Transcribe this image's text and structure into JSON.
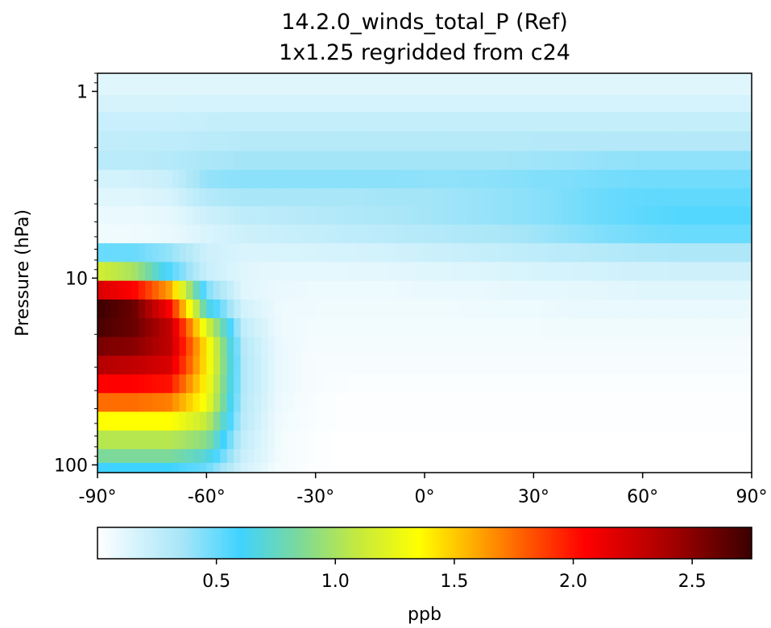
{
  "chart_data": {
    "type": "heatmap",
    "title": "14.2.0_winds_total_P (Ref)",
    "subtitle": "1x1.25 regridded from c24",
    "xlabel": "",
    "ylabel": "Pressure (hPa)",
    "xlim": [
      -90,
      90
    ],
    "ylim": [
      110,
      0.8
    ],
    "yscale": "log",
    "x_ticks": [
      -90,
      -60,
      -30,
      0,
      30,
      60,
      90
    ],
    "x_tick_labels": [
      "-90°",
      "-60°",
      "-30°",
      "0°",
      "30°",
      "60°",
      "90°"
    ],
    "y_ticks": [
      1,
      10,
      100
    ],
    "y_tick_labels": [
      "1",
      "10",
      "100"
    ],
    "grid": false,
    "colorbar": {
      "label": "ppb",
      "orientation": "horizontal",
      "placement": "bottom",
      "vmin": 0,
      "vmax": 2.75,
      "ticks": [
        0.5,
        1.0,
        1.5,
        2.0,
        2.5
      ],
      "tick_labels": [
        "0.5",
        "1.0",
        "1.5",
        "2.0",
        "2.5"
      ],
      "colormap": [
        {
          "v": 0.0,
          "color": "#ffffff"
        },
        {
          "v": 0.12,
          "color": "#e0f6fd"
        },
        {
          "v": 0.35,
          "color": "#a9e6f8"
        },
        {
          "v": 0.6,
          "color": "#3fd3ff"
        },
        {
          "v": 0.85,
          "color": "#7cd99a"
        },
        {
          "v": 1.1,
          "color": "#c6ea3c"
        },
        {
          "v": 1.35,
          "color": "#ffff00"
        },
        {
          "v": 1.55,
          "color": "#ffb800"
        },
        {
          "v": 1.8,
          "color": "#ff5a00"
        },
        {
          "v": 2.05,
          "color": "#ff0000"
        },
        {
          "v": 2.4,
          "color": "#a80000"
        },
        {
          "v": 2.75,
          "color": "#3b0000"
        }
      ]
    },
    "pressure_levels": [
      0.95,
      1.15,
      1.45,
      1.85,
      2.35,
      2.95,
      3.7,
      4.6,
      5.8,
      7.3,
      9.2,
      11.6,
      14.6,
      18.4,
      23.2,
      29.2,
      36.8,
      46.3,
      58.3,
      73.4,
      92.4,
      103
    ],
    "rows": [
      {
        "p": 0.95,
        "v": [
          0.12,
          0.12,
          0.12,
          0.12,
          0.12,
          0.12,
          0.12,
          0.12,
          0.12,
          0.12,
          0.12,
          0.12,
          0.12,
          0.12,
          0.12,
          0.12,
          0.12,
          0.12,
          0.12
        ]
      },
      {
        "p": 1.15,
        "v": [
          0.16,
          0.16,
          0.16,
          0.17,
          0.17,
          0.17,
          0.17,
          0.17,
          0.17,
          0.17,
          0.17,
          0.17,
          0.17,
          0.17,
          0.17,
          0.17,
          0.17,
          0.17,
          0.17
        ]
      },
      {
        "p": 1.45,
        "v": [
          0.22,
          0.22,
          0.22,
          0.23,
          0.24,
          0.24,
          0.24,
          0.24,
          0.24,
          0.24,
          0.24,
          0.24,
          0.24,
          0.24,
          0.24,
          0.24,
          0.24,
          0.24,
          0.24
        ]
      },
      {
        "p": 1.85,
        "v": [
          0.25,
          0.25,
          0.26,
          0.28,
          0.29,
          0.29,
          0.29,
          0.29,
          0.29,
          0.29,
          0.29,
          0.29,
          0.3,
          0.3,
          0.3,
          0.3,
          0.3,
          0.3,
          0.3
        ]
      },
      {
        "p": 2.35,
        "v": [
          0.28,
          0.28,
          0.3,
          0.34,
          0.36,
          0.36,
          0.36,
          0.36,
          0.36,
          0.36,
          0.36,
          0.36,
          0.37,
          0.38,
          0.4,
          0.41,
          0.41,
          0.41,
          0.41
        ]
      },
      {
        "p": 2.95,
        "v": [
          0.18,
          0.18,
          0.22,
          0.4,
          0.42,
          0.42,
          0.42,
          0.42,
          0.42,
          0.41,
          0.41,
          0.42,
          0.44,
          0.45,
          0.47,
          0.48,
          0.48,
          0.48,
          0.48
        ]
      },
      {
        "p": 3.7,
        "v": [
          0.12,
          0.12,
          0.16,
          0.3,
          0.35,
          0.35,
          0.35,
          0.35,
          0.36,
          0.36,
          0.38,
          0.4,
          0.42,
          0.46,
          0.5,
          0.52,
          0.52,
          0.52,
          0.52
        ]
      },
      {
        "p": 4.6,
        "v": [
          0.08,
          0.08,
          0.1,
          0.2,
          0.26,
          0.28,
          0.3,
          0.32,
          0.34,
          0.36,
          0.38,
          0.4,
          0.42,
          0.46,
          0.5,
          0.53,
          0.55,
          0.55,
          0.55
        ]
      },
      {
        "p": 5.8,
        "v": [
          0.06,
          0.06,
          0.08,
          0.15,
          0.2,
          0.22,
          0.24,
          0.26,
          0.28,
          0.3,
          0.32,
          0.34,
          0.37,
          0.41,
          0.45,
          0.48,
          0.5,
          0.5,
          0.5
        ]
      },
      {
        "p": 7.3,
        "v": [
          0.5,
          0.5,
          0.4,
          0.2,
          0.15,
          0.15,
          0.16,
          0.17,
          0.18,
          0.2,
          0.22,
          0.24,
          0.26,
          0.28,
          0.3,
          0.32,
          0.33,
          0.33,
          0.33
        ]
      },
      {
        "p": 9.2,
        "v": [
          1.15,
          1.0,
          0.55,
          0.22,
          0.12,
          0.1,
          0.1,
          0.1,
          0.11,
          0.12,
          0.13,
          0.14,
          0.16,
          0.17,
          0.18,
          0.19,
          0.2,
          0.2,
          0.2
        ]
      },
      {
        "p": 11.6,
        "v": [
          2.2,
          2.05,
          1.6,
          0.45,
          0.12,
          0.08,
          0.07,
          0.07,
          0.07,
          0.08,
          0.08,
          0.09,
          0.1,
          0.1,
          0.11,
          0.12,
          0.12,
          0.12,
          0.12
        ]
      },
      {
        "p": 14.6,
        "v": [
          2.75,
          2.6,
          2.05,
          0.7,
          0.18,
          0.07,
          0.06,
          0.06,
          0.06,
          0.06,
          0.06,
          0.07,
          0.07,
          0.08,
          0.08,
          0.08,
          0.08,
          0.08,
          0.08
        ]
      },
      {
        "p": 18.4,
        "v": [
          2.7,
          2.6,
          2.3,
          1.2,
          0.25,
          0.07,
          0.05,
          0.05,
          0.05,
          0.05,
          0.05,
          0.05,
          0.05,
          0.06,
          0.06,
          0.06,
          0.06,
          0.06,
          0.06
        ]
      },
      {
        "p": 23.2,
        "v": [
          2.55,
          2.5,
          2.3,
          1.4,
          0.3,
          0.08,
          0.04,
          0.04,
          0.04,
          0.04,
          0.04,
          0.04,
          0.04,
          0.04,
          0.04,
          0.04,
          0.04,
          0.04,
          0.04
        ]
      },
      {
        "p": 29.2,
        "v": [
          2.35,
          2.3,
          2.2,
          1.4,
          0.32,
          0.08,
          0.03,
          0.03,
          0.03,
          0.03,
          0.03,
          0.03,
          0.03,
          0.03,
          0.03,
          0.03,
          0.03,
          0.03,
          0.03
        ]
      },
      {
        "p": 36.8,
        "v": [
          2.05,
          2.05,
          2.0,
          1.35,
          0.32,
          0.08,
          0.03,
          0.02,
          0.02,
          0.02,
          0.02,
          0.02,
          0.02,
          0.02,
          0.02,
          0.02,
          0.02,
          0.02,
          0.02
        ]
      },
      {
        "p": 46.3,
        "v": [
          1.75,
          1.75,
          1.7,
          1.3,
          0.3,
          0.07,
          0.02,
          0.01,
          0.01,
          0.01,
          0.01,
          0.01,
          0.01,
          0.01,
          0.01,
          0.01,
          0.01,
          0.01,
          0.01
        ]
      },
      {
        "p": 58.3,
        "v": [
          1.35,
          1.35,
          1.35,
          1.1,
          0.28,
          0.06,
          0.02,
          0.01,
          0.01,
          0.01,
          0.01,
          0.01,
          0.01,
          0.01,
          0.01,
          0.01,
          0.01,
          0.01,
          0.01
        ]
      },
      {
        "p": 73.4,
        "v": [
          1.05,
          1.05,
          1.05,
          0.9,
          0.25,
          0.05,
          0.01,
          0.0,
          0.0,
          0.0,
          0.0,
          0.0,
          0.0,
          0.0,
          0.0,
          0.0,
          0.0,
          0.0,
          0.0
        ]
      },
      {
        "p": 92.4,
        "v": [
          0.85,
          0.85,
          0.85,
          0.7,
          0.22,
          0.05,
          0.01,
          0.0,
          0.0,
          0.0,
          0.0,
          0.0,
          0.0,
          0.0,
          0.0,
          0.0,
          0.0,
          0.0,
          0.0
        ]
      },
      {
        "p": 103,
        "v": [
          0.6,
          0.6,
          0.6,
          0.5,
          0.18,
          0.04,
          0.01,
          0.0,
          0.0,
          0.0,
          0.0,
          0.0,
          0.0,
          0.0,
          0.0,
          0.0,
          0.0,
          0.0,
          0.0
        ]
      }
    ],
    "latitudes": [
      -90,
      -80,
      -70,
      -60,
      -50,
      -40,
      -30,
      -20,
      -10,
      0,
      10,
      20,
      30,
      40,
      50,
      60,
      70,
      80,
      90
    ]
  }
}
